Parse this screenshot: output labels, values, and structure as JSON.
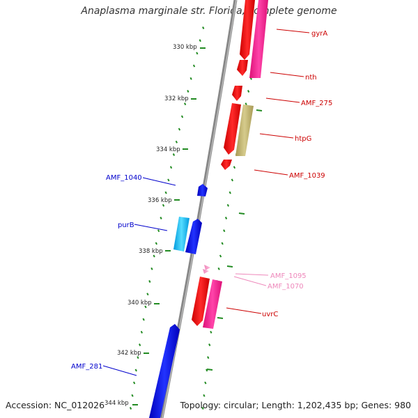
{
  "title": "Anaplasma marginale str. Florida, complete genome",
  "footer": {
    "accession": "Accession: NC_012026",
    "summary": "Topology: circular; Length: 1,202,435 bp; Genes: 980"
  },
  "colors": {
    "backbone": "#888888",
    "tick_mark": "#228b22",
    "forward_label": "#cc0000",
    "reverse_label": "#0000cc",
    "pink_label": "#ee88bb"
  },
  "ticks": [
    {
      "label": "330 kbp"
    },
    {
      "label": "332 kbp"
    },
    {
      "label": "334 kbp"
    },
    {
      "label": "336 kbp"
    },
    {
      "label": "338 kbp"
    },
    {
      "label": "340 kbp"
    },
    {
      "label": "342 kbp"
    },
    {
      "label": "344 kbp"
    }
  ],
  "genes": [
    {
      "name": "gyrA",
      "strand": "forward",
      "color": "#ff0000"
    },
    {
      "name": "nth",
      "strand": "forward",
      "color": "#ff0000"
    },
    {
      "name": "AMF_275",
      "strand": "forward",
      "color": "#ff0000"
    },
    {
      "name": "htpG",
      "strand": "forward",
      "color": "#ff0000"
    },
    {
      "name": "AMF_1039",
      "strand": "forward",
      "color": "#ff0000"
    },
    {
      "name": "AMF_1095",
      "strand": "forward",
      "color": "#ff99cc"
    },
    {
      "name": "AMF_1070",
      "strand": "forward",
      "color": "#ff99cc"
    },
    {
      "name": "uvrC",
      "strand": "forward",
      "color": "#ff0000"
    },
    {
      "name": "AMF_1040",
      "strand": "reverse",
      "color": "#0000ff"
    },
    {
      "name": "purB",
      "strand": "reverse",
      "color": "#00aaee"
    },
    {
      "name": "AMF_281",
      "strand": "reverse",
      "color": "#0000ff"
    }
  ]
}
